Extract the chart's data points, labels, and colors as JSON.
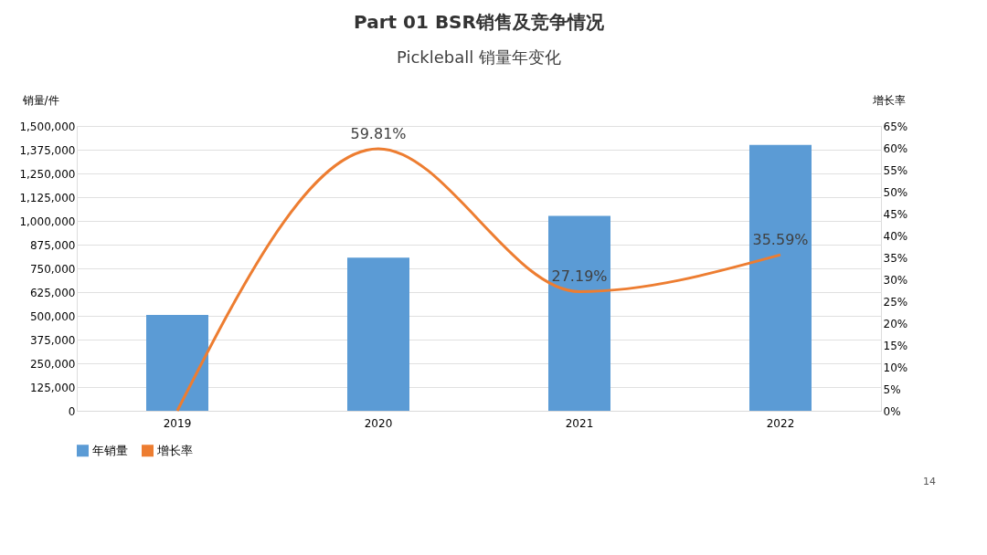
{
  "chart_data": {
    "type": "bar",
    "title": "Part 01  BSR销售及竞争情况",
    "subtitle": "Pickleball 销量年变化",
    "ylabel": "销量/件",
    "y2label": "增长率",
    "categories": [
      "2019",
      "2020",
      "2021",
      "2022"
    ],
    "series": [
      {
        "name": "年销量",
        "color": "#5b9bd5",
        "values": [
          505000,
          807000,
          1026000,
          1400000
        ]
      },
      {
        "name": "增长率",
        "type": "line",
        "axis": "y2",
        "color": "#ed7d31",
        "values": [
          0,
          59.81,
          27.19,
          35.59
        ],
        "value_labels": [
          null,
          "59.81%",
          "27.19%",
          "35.59%"
        ]
      }
    ],
    "ylim": [
      0,
      1500000
    ],
    "yticks": [
      0,
      {
        "value": 125000,
        "label": "125,000"
      },
      {
        "value": 250000,
        "label": "250,000"
      },
      {
        "value": 375000,
        "label": "375,000"
      },
      {
        "value": 500000,
        "label": "500,000"
      },
      {
        "value": 625000,
        "label": "625,000"
      },
      {
        "value": 750000,
        "label": "750,000"
      },
      {
        "value": 875000,
        "label": "875,000"
      },
      {
        "value": 1000000,
        "label": "1,000,000"
      },
      {
        "value": 1125000,
        "label": "1,125,000"
      },
      {
        "value": 1250000,
        "label": "1,250,000"
      },
      {
        "value": 1375000,
        "label": "1,375,000"
      },
      {
        "value": 1500000,
        "label": "1,500,000"
      }
    ],
    "y2lim": [
      0,
      65
    ],
    "y2ticks": [
      {
        "value": 0,
        "label": "0%"
      },
      {
        "value": 5,
        "label": "5%"
      },
      {
        "value": 10,
        "label": "10%"
      },
      {
        "value": 15,
        "label": "15%"
      },
      {
        "value": 20,
        "label": "20%"
      },
      {
        "value": 25,
        "label": "25%"
      },
      {
        "value": 30,
        "label": "30%"
      },
      {
        "value": 35,
        "label": "35%"
      },
      {
        "value": 40,
        "label": "40%"
      },
      {
        "value": 45,
        "label": "45%"
      },
      {
        "value": 50,
        "label": "50%"
      },
      {
        "value": 55,
        "label": "55%"
      },
      {
        "value": 60,
        "label": "60%"
      },
      {
        "value": 65,
        "label": "65%"
      }
    ],
    "grid": "y",
    "legend": "bottom",
    "marker": "none",
    "line_style": "solid",
    "annotations": [
      "14"
    ]
  }
}
